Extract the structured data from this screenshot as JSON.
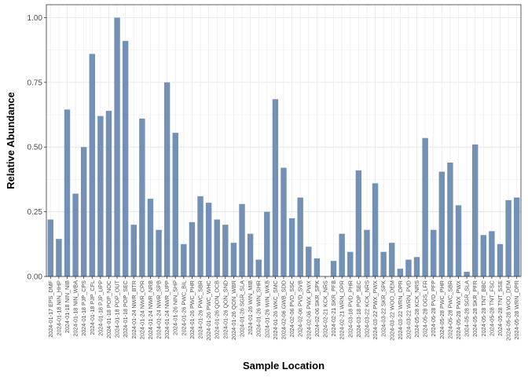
{
  "chart_data": {
    "type": "bar",
    "xlabel": "Sample Location",
    "ylabel": "Relative Abundance",
    "ylim": [
      0,
      1.05
    ],
    "yticks": [
      "0.00",
      "0.25",
      "0.50",
      "0.75",
      "1.00"
    ],
    "ytick_values": [
      0,
      0.25,
      0.5,
      0.75,
      1.0
    ],
    "grid": true,
    "bar_color": "#7391b5",
    "categories": [
      "2024-01-17 EPS_DMF",
      "2024-01-18 NIN_HHP",
      "2024-01-18 NIN_NIB",
      "2024-01-18 NIN_WBA",
      "2024-01-18 PJP_CPS",
      "2024-01-18 PJP_CFL",
      "2024-01-18 PJP_UPP",
      "2024-01-18 POP_NOC",
      "2024-01-18 POP_OUT",
      "2024-01-18 POP_SEC",
      "2024-01-24 NWR_BTR",
      "2024-01-24 NWR_CPR",
      "2024-01-24 NWR_NRB",
      "2024-01-24 NWR_SPB",
      "2024-01-24 NWR_UPP",
      "2024-01-26 NIN_SHP",
      "2024-01-26 PWC_BIL",
      "2024-01-26 PWC_PHR",
      "2024-01-26 PWC_SBR",
      "2024-01-26 PWC_WHC",
      "2024-01-26 QON_OCB",
      "2024-01-26 QON_SND",
      "2024-01-26 QON_WBR",
      "2024-01-26 SGR_SLA",
      "2024-01-26 WIN_MIB",
      "2024-01-26 WIN_SHR",
      "2024-01-26 WIN_WKB",
      "2024-01-26 WKC_SMC",
      "2024-02-06 GWB_SDD",
      "2024-02-06 PVD_SSC",
      "2024-02-06 PVD_SVB",
      "2024-02-06 PWX_PWX",
      "2024-02-06 SKR_SPK",
      "2024-02-21 KCK_NRS",
      "2024-02-21 SKR_PFB",
      "2024-02-21 WRN_OPR",
      "2024-03-18 PVD_PHR",
      "2024-03-18 POP_SEC",
      "2024-03-22 KCK_NRS",
      "2024-03-22 PWX_PWX",
      "2024-03-22 SKR_SPK",
      "2024-03-22 WOO_DEM",
      "2024-03-22 WRN_OPR",
      "2024-03-22 WRN_PVD",
      "2024-05-28 KCK_NRS",
      "2024-05-28 OGS_LFR",
      "2024-05-28 PVD_PFP",
      "2024-05-28 PWC_PHR",
      "2024-05-28 PWC_SBR",
      "2024-05-28 PWX_PWX",
      "2024-05-28 SGR_SLA",
      "2024-05-28 SKR_PFR",
      "2024-05-28 TNT_BBC",
      "2024-05-28 TNT_FSC",
      "2024-05-28 TNT_SSE",
      "2024-05-28 WOO_DEM",
      "2024-05-28 WRN_OPR"
    ],
    "values": [
      0.22,
      0.145,
      0.645,
      0.32,
      0.5,
      0.86,
      0.62,
      0.64,
      1.0,
      0.91,
      0.2,
      0.61,
      0.3,
      0.18,
      0.75,
      0.555,
      0.125,
      0.21,
      0.31,
      0.285,
      0.22,
      0.2,
      0.13,
      0.28,
      0.165,
      0.065,
      0.25,
      0.685,
      0.42,
      0.225,
      0.305,
      0.115,
      0.07,
      0.0,
      0.06,
      0.165,
      0.095,
      0.41,
      0.18,
      0.36,
      0.095,
      0.13,
      0.03,
      0.065,
      0.075,
      0.535,
      0.18,
      0.405,
      0.44,
      0.275,
      0.018,
      0.51,
      0.16,
      0.175,
      0.125,
      0.295,
      0.305
    ]
  }
}
